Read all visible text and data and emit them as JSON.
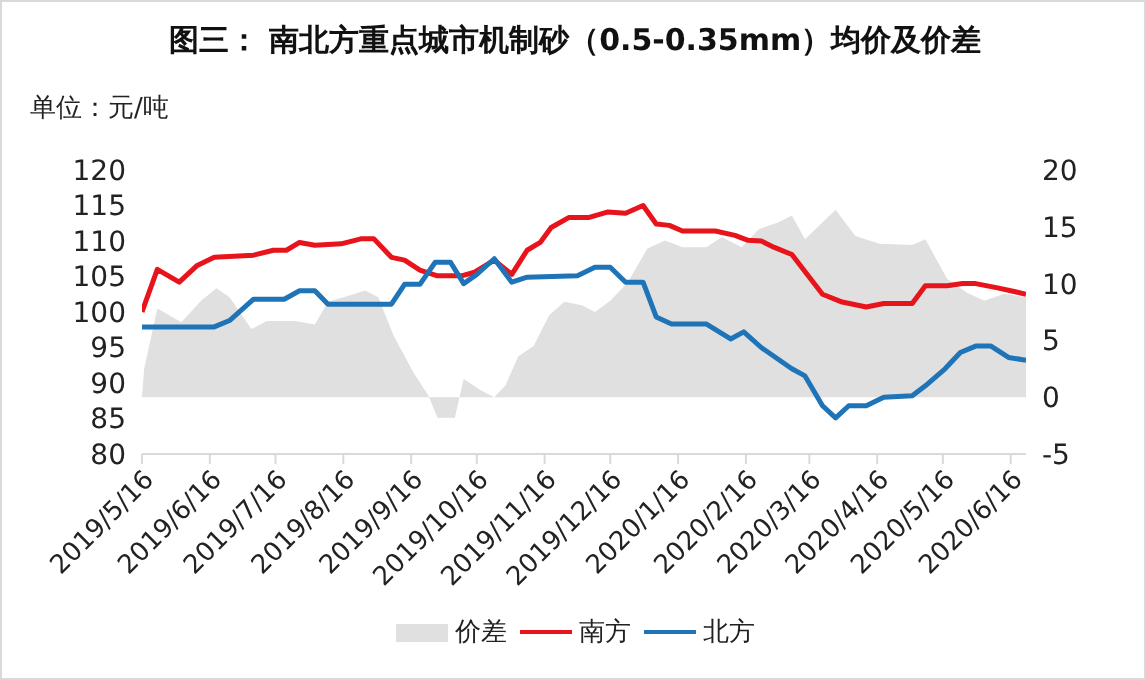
{
  "chart_data": {
    "type": "line",
    "title": "图三：  南北方重点城市机制砂（0.5-0.35mm）均价及价差",
    "ylabel": "单位：元/吨",
    "xlim": [
      "2019-05-16",
      "2020-06-23"
    ],
    "xticks": [
      {
        "value": "2019-05-16",
        "label": "2019/5/16"
      },
      {
        "value": "2019-06-16",
        "label": "2019/6/16"
      },
      {
        "value": "2019-07-16",
        "label": "2019/7/16"
      },
      {
        "value": "2019-08-16",
        "label": "2019/8/16"
      },
      {
        "value": "2019-09-16",
        "label": "2019/9/16"
      },
      {
        "value": "2019-10-16",
        "label": "2019/10/16"
      },
      {
        "value": "2019-11-16",
        "label": "2019/11/16"
      },
      {
        "value": "2019-12-16",
        "label": "2019/12/16"
      },
      {
        "value": "2020-01-16",
        "label": "2020/1/16"
      },
      {
        "value": "2020-02-16",
        "label": "2020/2/16"
      },
      {
        "value": "2020-03-16",
        "label": "2020/3/16"
      },
      {
        "value": "2020-04-16",
        "label": "2020/4/16"
      },
      {
        "value": "2020-05-16",
        "label": "2020/5/16"
      },
      {
        "value": "2020-06-16",
        "label": "2020/6/16"
      }
    ],
    "ylim": [
      80,
      120
    ],
    "yticks": [
      80,
      85,
      90,
      95,
      100,
      105,
      110,
      115,
      120
    ],
    "y2lim": [
      -5,
      20
    ],
    "y2ticks": [
      -5,
      0,
      5,
      10,
      15,
      20
    ],
    "grid": false,
    "legend": "bottom",
    "series": [
      {
        "name": "价差",
        "type": "area",
        "axis": "y2",
        "color": "#e0e0e0",
        "x": [
          "2019-05-16",
          "2019-05-17",
          "2019-05-23",
          "2019-06-03",
          "2019-06-12",
          "2019-06-19",
          "2019-06-25",
          "2019-07-05",
          "2019-07-12",
          "2019-07-25",
          "2019-08-03",
          "2019-08-09",
          "2019-08-18",
          "2019-08-26",
          "2019-09-01",
          "2019-09-08",
          "2019-09-17",
          "2019-09-24",
          "2019-09-28",
          "2019-10-06",
          "2019-10-10",
          "2019-10-18",
          "2019-10-24",
          "2019-10-29",
          "2019-11-04",
          "2019-11-11",
          "2019-11-18",
          "2019-11-25",
          "2019-12-03",
          "2019-12-09",
          "2019-12-16",
          "2019-12-24",
          "2020-01-02",
          "2020-01-10",
          "2020-01-18",
          "2020-01-29",
          "2020-02-05",
          "2020-02-14",
          "2020-02-22",
          "2020-03-02",
          "2020-03-08",
          "2020-03-14",
          "2020-03-28",
          "2020-04-06",
          "2020-04-17",
          "2020-05-02",
          "2020-05-08",
          "2020-05-18",
          "2020-05-27",
          "2020-06-04",
          "2020-06-13",
          "2020-06-23"
        ],
        "values": [
          0.1,
          2.5,
          7.8,
          6.6,
          8.5,
          9.6,
          8.8,
          6.0,
          6.7,
          6.7,
          6.4,
          8.4,
          8.9,
          9.4,
          8.8,
          5.4,
          2.2,
          0.1,
          -1.8,
          -1.8,
          1.6,
          0.6,
          0.0,
          1.0,
          3.6,
          4.5,
          7.2,
          8.4,
          8.1,
          7.5,
          8.5,
          10.1,
          13.1,
          13.8,
          13.2,
          13.2,
          14.1,
          13.2,
          14.8,
          15.4,
          16.0,
          13.9,
          16.5,
          14.2,
          13.5,
          13.4,
          13.9,
          10.4,
          9.2,
          8.5,
          9.1,
          8.8
        ]
      },
      {
        "name": "南方",
        "color": "#e8141c",
        "x": [
          "2019-05-16",
          "2019-05-23",
          "2019-06-02",
          "2019-06-10",
          "2019-06-18",
          "2019-07-06",
          "2019-07-15",
          "2019-07-21",
          "2019-07-27",
          "2019-08-03",
          "2019-08-15",
          "2019-08-24",
          "2019-08-30",
          "2019-09-07",
          "2019-09-13",
          "2019-09-20",
          "2019-09-28",
          "2019-10-09",
          "2019-10-15",
          "2019-10-24",
          "2019-11-01",
          "2019-11-08",
          "2019-11-14",
          "2019-11-19",
          "2019-11-27",
          "2019-12-06",
          "2019-12-15",
          "2019-12-23",
          "2019-12-31",
          "2020-01-06",
          "2020-01-12",
          "2020-01-18",
          "2020-02-02",
          "2020-02-11",
          "2020-02-17",
          "2020-02-23",
          "2020-02-29",
          "2020-03-08",
          "2020-03-16",
          "2020-03-22",
          "2020-03-31",
          "2020-04-11",
          "2020-04-19",
          "2020-05-02",
          "2020-05-08",
          "2020-05-18",
          "2020-05-25",
          "2020-05-31",
          "2020-06-10",
          "2020-06-16",
          "2020-06-23"
        ],
        "values": [
          100,
          106,
          104.2,
          106.5,
          107.7,
          108,
          108.7,
          108.7,
          109.8,
          109.4,
          109.6,
          110.3,
          110.3,
          107.7,
          107.3,
          105.9,
          105.1,
          105.1,
          105.6,
          107.3,
          105.3,
          108.7,
          109.8,
          111.9,
          113.3,
          113.3,
          114.1,
          113.9,
          115,
          112.4,
          112.2,
          111.4,
          111.4,
          110.8,
          110.1,
          110,
          109.1,
          108.1,
          104.9,
          102.5,
          101.4,
          100.7,
          101.2,
          101.2,
          103.7,
          103.7,
          104,
          104,
          103.4,
          103,
          102.5
        ]
      },
      {
        "name": "北方",
        "color": "#1f74b8",
        "x": [
          "2019-05-16",
          "2019-06-18",
          "2019-06-25",
          "2019-07-06",
          "2019-07-20",
          "2019-07-27",
          "2019-08-03",
          "2019-08-09",
          "2019-09-07",
          "2019-09-13",
          "2019-09-20",
          "2019-09-27",
          "2019-10-04",
          "2019-10-10",
          "2019-10-16",
          "2019-10-24",
          "2019-11-01",
          "2019-11-08",
          "2019-12-01",
          "2019-12-09",
          "2019-12-16",
          "2019-12-23",
          "2019-12-31",
          "2020-01-06",
          "2020-01-13",
          "2020-01-29",
          "2020-02-09",
          "2020-02-15",
          "2020-02-23",
          "2020-03-08",
          "2020-03-14",
          "2020-03-22",
          "2020-03-28",
          "2020-04-03",
          "2020-04-11",
          "2020-04-19",
          "2020-05-02",
          "2020-05-08",
          "2020-05-17",
          "2020-05-24",
          "2020-05-31",
          "2020-06-07",
          "2020-06-15",
          "2020-06-23"
        ],
        "values": [
          97.9,
          97.9,
          98.8,
          101.8,
          101.8,
          103,
          103,
          101.1,
          101.1,
          103.9,
          103.9,
          107,
          107,
          104,
          105.3,
          107.5,
          104.2,
          104.9,
          105.1,
          106.3,
          106.3,
          104.2,
          104.2,
          99.3,
          98.3,
          98.3,
          96.2,
          97.2,
          95,
          92,
          91,
          86.8,
          85.1,
          86.8,
          86.8,
          88,
          88.2,
          89.6,
          92,
          94.3,
          95.2,
          95.2,
          93.6,
          93.2
        ]
      }
    ]
  }
}
